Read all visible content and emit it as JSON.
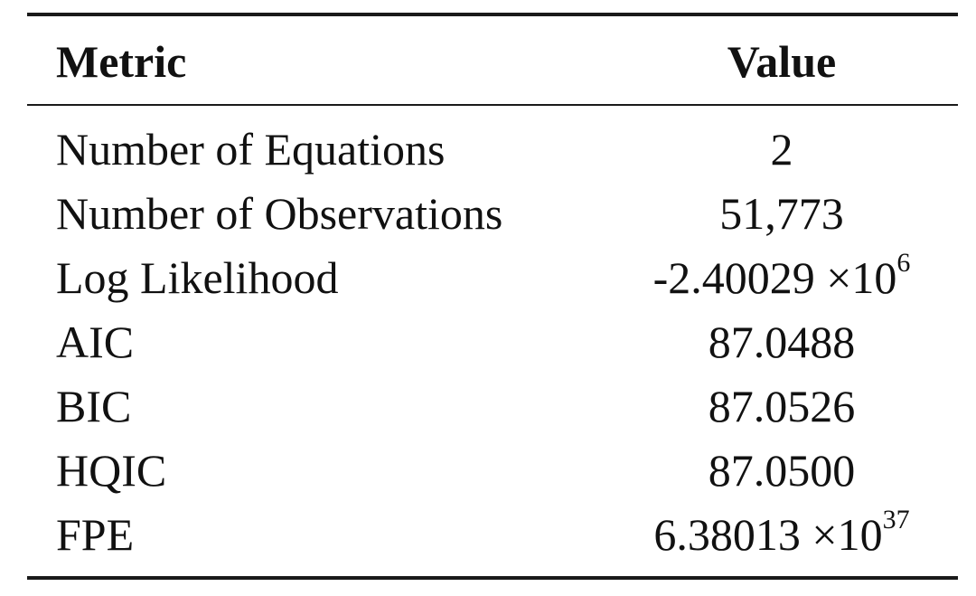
{
  "table": {
    "headers": {
      "metric": "Metric",
      "value": "Value"
    },
    "rows": [
      {
        "metric": "Number of Equations",
        "value": "2"
      },
      {
        "metric": "Number of Observations",
        "value": "51,773"
      },
      {
        "metric": "Log Likelihood",
        "value_mantissa": "-2.40029 ×10",
        "value_exponent": "6"
      },
      {
        "metric": "AIC",
        "value": "87.0488"
      },
      {
        "metric": "BIC",
        "value": "87.0526"
      },
      {
        "metric": "HQIC",
        "value": "87.0500"
      },
      {
        "metric": "FPE",
        "value_mantissa": "6.38013 ×10",
        "value_exponent": "37"
      }
    ]
  }
}
